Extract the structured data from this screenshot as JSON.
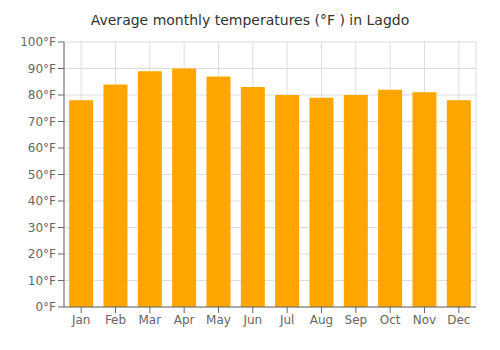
{
  "chart_data": {
    "type": "bar",
    "title": "Average monthly temperatures (°F ) in Lagdo",
    "categories": [
      "Jan",
      "Feb",
      "Mar",
      "Apr",
      "May",
      "Jun",
      "Jul",
      "Aug",
      "Sep",
      "Oct",
      "Nov",
      "Dec"
    ],
    "values": [
      78,
      84,
      89,
      90,
      87,
      83,
      80,
      79,
      80,
      82,
      81,
      78
    ],
    "color": "#FFA500",
    "ylim": [
      0,
      100
    ],
    "yticks": [
      {
        "value": 0,
        "label": "0°F"
      },
      {
        "value": 10,
        "label": "10°F"
      },
      {
        "value": 20,
        "label": "20°F"
      },
      {
        "value": 30,
        "label": "30°F"
      },
      {
        "value": 40,
        "label": "40°F"
      },
      {
        "value": 50,
        "label": "50°F"
      },
      {
        "value": 60,
        "label": "60°F"
      },
      {
        "value": 70,
        "label": "70°F"
      },
      {
        "value": 80,
        "label": "80°F"
      },
      {
        "value": 90,
        "label": "90°F"
      },
      {
        "value": 100,
        "label": "100°F"
      }
    ],
    "grid": true
  }
}
